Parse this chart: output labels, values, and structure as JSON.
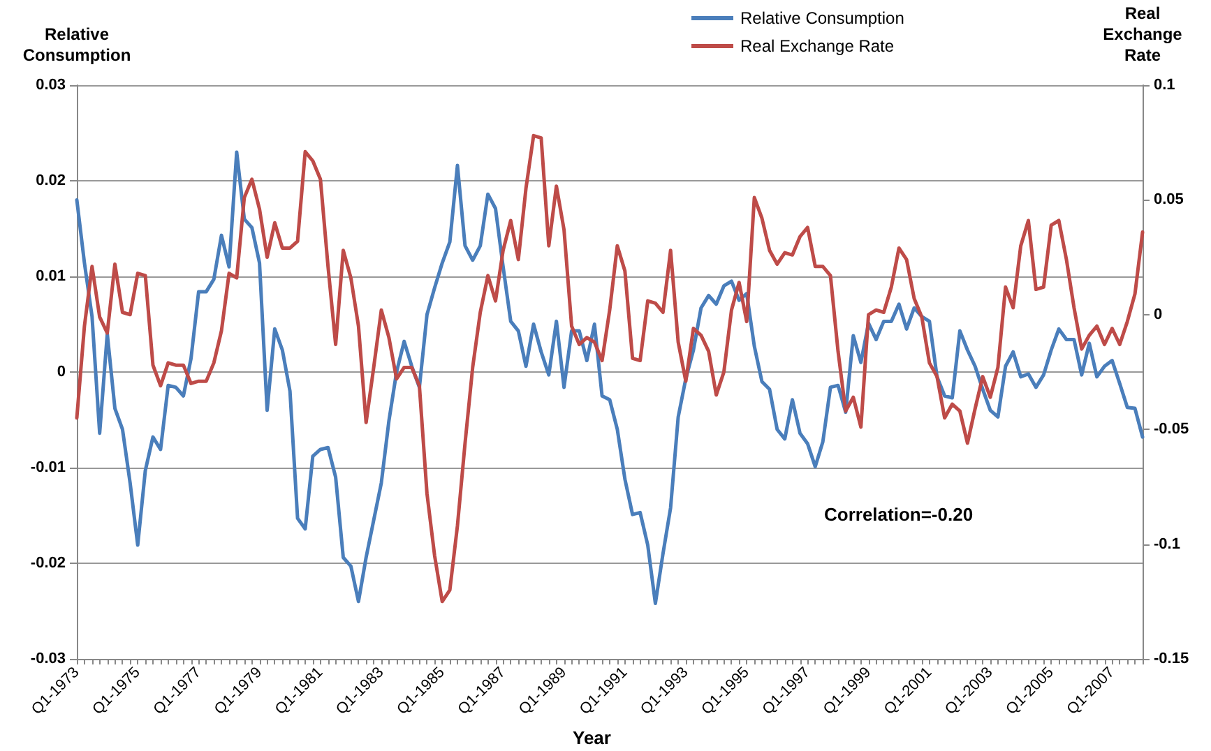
{
  "chart_data": {
    "type": "line",
    "ylabel": "Relative Consumption",
    "y2label": "Real Exchange Rate",
    "annotations": [
      "Correlation=-0.20",
      "Year"
    ],
    "categories": [
      "Q1-1973",
      null,
      null,
      null,
      null,
      null,
      null,
      null,
      "Q1-1975",
      null,
      null,
      null,
      null,
      null,
      null,
      null,
      "Q1-1977",
      null,
      null,
      null,
      null,
      null,
      null,
      null,
      "Q1-1979",
      null,
      null,
      null,
      null,
      null,
      null,
      null,
      "Q1-1981",
      null,
      null,
      null,
      null,
      null,
      null,
      null,
      "Q1-1983",
      null,
      null,
      null,
      null,
      null,
      null,
      null,
      "Q1-1985",
      null,
      null,
      null,
      null,
      null,
      null,
      null,
      "Q1-1987",
      null,
      null,
      null,
      null,
      null,
      null,
      null,
      "Q1-1989",
      null,
      null,
      null,
      null,
      null,
      null,
      null,
      "Q1-1991",
      null,
      null,
      null,
      null,
      null,
      null,
      null,
      "Q1-1993",
      null,
      null,
      null,
      null,
      null,
      null,
      null,
      "Q1-1995",
      null,
      null,
      null,
      null,
      null,
      null,
      null,
      "Q1-1997",
      null,
      null,
      null,
      null,
      null,
      null,
      null,
      "Q1-1999",
      null,
      null,
      null,
      null,
      null,
      null,
      null,
      "Q1-2001",
      null,
      null,
      null,
      null,
      null,
      null,
      null,
      "Q1-2003",
      null,
      null,
      null,
      null,
      null,
      null,
      null,
      "Q1-2005",
      null,
      null,
      null,
      null,
      null,
      null,
      null,
      "Q1-2007",
      null,
      null,
      null,
      null
    ],
    "series": [
      {
        "name": "Relative Consumption",
        "color": "#4a7ebb",
        "values": [
          0.018,
          0.0114,
          0.0058,
          -0.0064,
          0.004,
          -0.0038,
          -0.006,
          -0.0116,
          -0.0181,
          -0.0103,
          -0.0068,
          -0.0081,
          -0.0014,
          -0.0016,
          -0.0025,
          0.0014,
          0.0084,
          0.0084,
          0.0097,
          0.0143,
          0.011,
          0.023,
          0.016,
          0.0151,
          0.0114,
          -0.004,
          0.0045,
          0.0023,
          -0.002,
          -0.0153,
          -0.0164,
          -0.0088,
          -0.0081,
          -0.0079,
          -0.011,
          -0.0194,
          -0.0203,
          -0.024,
          -0.0194,
          -0.0155,
          -0.0116,
          -0.0051,
          0,
          0.0032,
          0.0006,
          -0.0016,
          0.006,
          0.0088,
          0.0114,
          0.0136,
          0.0216,
          0.0132,
          0.0117,
          0.0132,
          0.0186,
          0.0171,
          0.011,
          0.0053,
          0.0043,
          0.0006,
          0.005,
          0.0021,
          -0.0003,
          0.0053,
          -0.0016,
          0.0043,
          0.0043,
          0.0012,
          0.005,
          -0.0025,
          -0.0029,
          -0.006,
          -0.0112,
          -0.0149,
          -0.0147,
          -0.0181,
          -0.0242,
          -0.019,
          -0.0142,
          -0.0047,
          -0.0007,
          0.0023,
          0.0067,
          0.008,
          0.0071,
          0.009,
          0.0095,
          0.0075,
          0.0082,
          0.0027,
          -0.001,
          -0.0018,
          -0.006,
          -0.007,
          -0.0029,
          -0.0064,
          -0.0075,
          -0.0099,
          -0.0073,
          -0.0016,
          -0.0014,
          -0.0042,
          0.0038,
          0.001,
          0.0051,
          0.0034,
          0.0053,
          0.0053,
          0.0071,
          0.0045,
          0.0067,
          0.0058,
          0.0053,
          -0.0005,
          -0.0025,
          -0.0027,
          0.0043,
          0.0023,
          0.0006,
          -0.0018,
          -0.004,
          -0.0047,
          0.0006,
          0.0021,
          -0.0005,
          -0.0002,
          -0.0016,
          -0.0003,
          0.0023,
          0.0045,
          0.0034,
          0.0034,
          -0.0003,
          0.003,
          -0.0005,
          0.0006,
          0.0012,
          -0.0012,
          -0.0037,
          -0.0038,
          -0.0068
        ]
      },
      {
        "name": "Real Exchange Rate",
        "color": "#be4b48",
        "axis": "y2",
        "values": [
          -0.045,
          -0.005,
          0.021,
          -0.001,
          -0.008,
          0.022,
          0.001,
          0,
          0.018,
          0.017,
          -0.022,
          -0.031,
          -0.021,
          -0.022,
          -0.022,
          -0.03,
          -0.029,
          -0.029,
          -0.021,
          -0.007,
          0.018,
          0.016,
          0.051,
          0.059,
          0.046,
          0.025,
          0.04,
          0.029,
          0.029,
          0.032,
          0.071,
          0.067,
          0.059,
          0.021,
          -0.013,
          0.028,
          0.016,
          -0.005,
          -0.047,
          -0.023,
          0.002,
          -0.01,
          -0.028,
          -0.023,
          -0.023,
          -0.031,
          -0.078,
          -0.105,
          -0.125,
          -0.12,
          -0.092,
          -0.056,
          -0.023,
          0.001,
          0.017,
          0.006,
          0.028,
          0.041,
          0.024,
          0.055,
          0.078,
          0.077,
          0.03,
          0.056,
          0.037,
          -0.005,
          -0.013,
          -0.01,
          -0.012,
          -0.02,
          0.002,
          0.03,
          0.019,
          -0.019,
          -0.02,
          0.006,
          0.005,
          0.001,
          0.028,
          -0.012,
          -0.029,
          -0.006,
          -0.009,
          -0.016,
          -0.035,
          -0.025,
          0.002,
          0.014,
          -0.003,
          0.051,
          0.042,
          0.028,
          0.022,
          0.027,
          0.026,
          0.034,
          0.038,
          0.021,
          0.021,
          0.017,
          -0.016,
          -0.042,
          -0.036,
          -0.049,
          0,
          0.002,
          0.001,
          0.012,
          0.029,
          0.024,
          0.007,
          -0.001,
          -0.021,
          -0.027,
          -0.045,
          -0.039,
          -0.042,
          -0.056,
          -0.041,
          -0.027,
          -0.036,
          -0.023,
          0.012,
          0.003,
          0.03,
          0.041,
          0.011,
          0.012,
          0.039,
          0.041,
          0.024,
          0.003,
          -0.015,
          -0.009,
          -0.005,
          -0.013,
          -0.006,
          -0.013,
          -0.003,
          0.009,
          0.036
        ]
      }
    ],
    "ylim": [
      -0.03,
      0.03
    ],
    "yticks": [
      -0.03,
      -0.02,
      -0.01,
      0,
      0.01,
      0.02,
      0.03
    ],
    "y2lim": [
      -0.15,
      0.1
    ],
    "y2ticks": [
      -0.15,
      -0.1,
      -0.05,
      0,
      0.05,
      0.1
    ],
    "grid": "y",
    "legend": "top",
    "marker": "none",
    "line_style": "solid"
  }
}
